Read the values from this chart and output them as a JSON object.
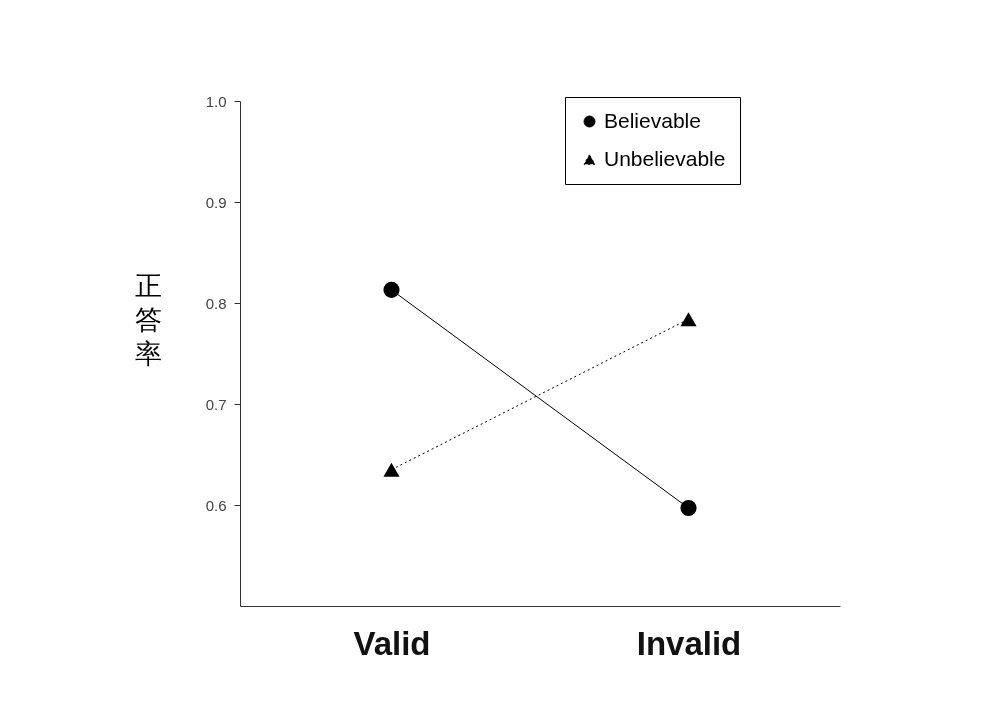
{
  "chart_data": {
    "type": "line",
    "ylabel": "正答率",
    "categories": [
      "Valid",
      "Invalid"
    ],
    "series": [
      {
        "name": "Believable",
        "color": "#000000",
        "values": [
          0.813,
          0.597
        ],
        "marker": "circle",
        "line_style": "solid"
      },
      {
        "name": "Unbelievable",
        "color": "#000000",
        "values": [
          0.635,
          0.784
        ],
        "marker": "triangle",
        "line_style": "dotted"
      }
    ],
    "ylim": [
      0.5,
      1.0
    ],
    "yticks": [
      0.6,
      0.7,
      0.8,
      0.9,
      {
        "value": 1,
        "label": "1.0"
      }
    ],
    "grid": false,
    "legend": "top right"
  }
}
